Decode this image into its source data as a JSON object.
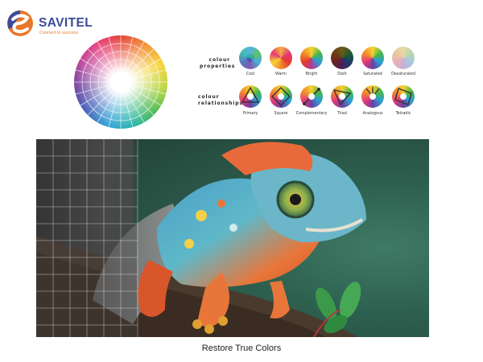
{
  "brand": {
    "name": "SAVITEL",
    "tagline": "Connect to success",
    "colors": {
      "navy": "#3a4a9a",
      "orange": "#e8782a"
    }
  },
  "legend": {
    "properties_label": [
      "colour",
      "properties"
    ],
    "relationships_label": [
      "colour",
      "relationships"
    ],
    "properties": [
      "Cool",
      "Warm",
      "Bright",
      "Dark",
      "Saturated",
      "Desaturated"
    ],
    "relationships": [
      "Primary",
      "Square",
      "Complementary",
      "Triad",
      "Analogous",
      "Tetradic"
    ]
  },
  "caption": "Restore True Colors"
}
